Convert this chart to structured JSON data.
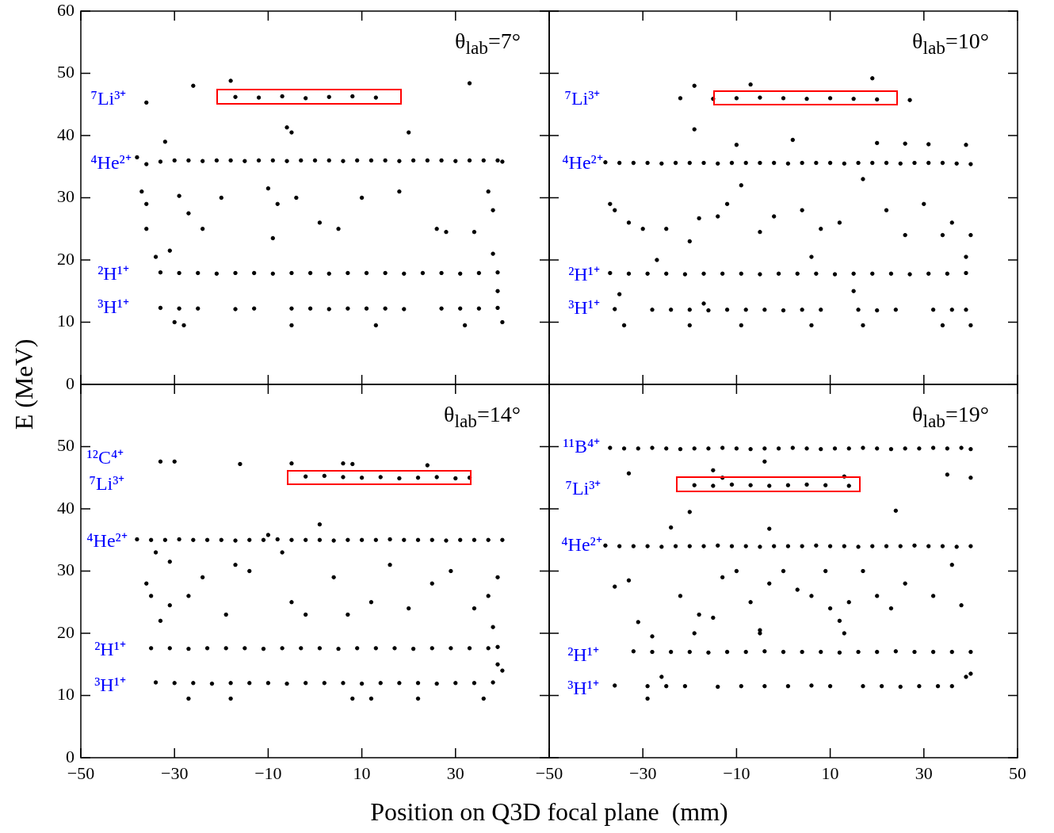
{
  "chart_data": [
    {
      "type": "scatter",
      "ylabel": "E (MeV)",
      "xlim": [
        -50,
        50
      ],
      "ylim": [
        0,
        60
      ],
      "xticks": [
        -50,
        -30,
        -10,
        10,
        30,
        50
      ],
      "yticks": [
        0,
        10,
        20,
        30,
        40,
        50,
        60
      ],
      "tick_labels": "y",
      "marker": "circle",
      "annotations": [
        "θ$_{lab}$=7°",
        "⁷Li³⁺",
        "⁴He²⁺",
        "²H¹⁺",
        "³H¹⁺"
      ],
      "series": [
        {
          "color": "#000000",
          "x": [
            -17,
            -12,
            -7,
            -2,
            3,
            8,
            13,
            -38,
            -36,
            -33,
            -30,
            -27,
            -24,
            -21,
            -18,
            -15,
            -12,
            -9,
            -6,
            -3,
            0,
            3,
            6,
            9,
            12,
            15,
            18,
            21,
            24,
            27,
            30,
            33,
            36,
            39,
            40,
            -33,
            -29,
            -25,
            -21,
            -17,
            -13,
            -9,
            -5,
            -1,
            3,
            7,
            11,
            15,
            19,
            23,
            27,
            31,
            35,
            39,
            -33,
            -29,
            -25,
            -17,
            -13,
            -5,
            -1,
            3,
            7,
            11,
            15,
            19,
            27,
            31,
            35,
            39,
            -36,
            -26,
            -18,
            -6,
            -5,
            20,
            33,
            -32,
            -37,
            -36,
            -36,
            -29,
            -27,
            -24,
            -20,
            -10,
            -8,
            -4,
            1,
            5,
            10,
            18,
            26,
            28,
            37,
            38,
            -30,
            -28,
            -5,
            13,
            32,
            40,
            39,
            38,
            34,
            -34,
            -31,
            -9
          ],
          "values": [
            46.2,
            46.1,
            46.3,
            46.0,
            46.2,
            46.3,
            46.1,
            36.5,
            35.4,
            35.8,
            36.0,
            36.0,
            35.9,
            36.0,
            36.0,
            35.9,
            36.0,
            36.0,
            35.9,
            36.0,
            36.0,
            36.0,
            35.9,
            36.0,
            36.0,
            36.0,
            35.9,
            36.0,
            36.0,
            36.0,
            35.9,
            36.0,
            36.0,
            36.0,
            35.8,
            18.0,
            17.9,
            17.9,
            17.8,
            17.9,
            17.9,
            17.8,
            17.9,
            17.9,
            17.8,
            17.9,
            17.9,
            17.9,
            17.8,
            17.9,
            17.9,
            17.8,
            17.9,
            18.0,
            12.3,
            12.2,
            12.2,
            12.1,
            12.2,
            12.2,
            12.2,
            12.1,
            12.2,
            12.2,
            12.2,
            12.1,
            12.2,
            12.2,
            12.2,
            12.3,
            45.3,
            48,
            48.8,
            41.3,
            40.5,
            40.5,
            48.4,
            39,
            31,
            29,
            25,
            30.3,
            27.5,
            25,
            30,
            31.5,
            29,
            30,
            26,
            25,
            30,
            31,
            25,
            24.5,
            31,
            28,
            10,
            9.5,
            9.5,
            9.5,
            9.5,
            10,
            15,
            21,
            24.5,
            20.5,
            21.5,
            23.5
          ]
        }
      ]
    },
    {
      "type": "scatter",
      "xlim": [
        -50,
        50
      ],
      "ylim": [
        0,
        60
      ],
      "xticks": [
        -50,
        -30,
        -10,
        10,
        30,
        50
      ],
      "yticks": [
        0,
        10,
        20,
        30,
        40,
        50,
        60
      ],
      "tick_labels": false,
      "marker": "circle",
      "annotations": [
        "θ$_{lab}$=10°",
        "⁷Li³⁺",
        "⁴He²⁺",
        "²H¹⁺",
        "³H¹⁺"
      ],
      "series": [
        {
          "color": "#000000",
          "x": [
            -15,
            -10,
            -5,
            0,
            5,
            10,
            15,
            20,
            -38,
            -35,
            -32,
            -29,
            -26,
            -23,
            -20,
            -17,
            -14,
            -11,
            -8,
            -5,
            -2,
            1,
            4,
            7,
            10,
            13,
            16,
            19,
            22,
            25,
            28,
            31,
            34,
            37,
            40,
            -37,
            -33,
            -29,
            -25,
            -21,
            -17,
            -13,
            -9,
            -5,
            -1,
            3,
            7,
            11,
            15,
            19,
            23,
            27,
            31,
            35,
            39,
            -36,
            -28,
            -24,
            -20,
            -16,
            -12,
            -8,
            -4,
            0,
            4,
            8,
            16,
            20,
            24,
            32,
            36,
            39,
            -22,
            -19,
            -7,
            19,
            27,
            -19,
            -10,
            2,
            20,
            26,
            31,
            39,
            -37,
            -36,
            -33,
            -30,
            -25,
            -20,
            -18,
            -14,
            -12,
            -9,
            -5,
            -2,
            4,
            8,
            12,
            17,
            22,
            26,
            30,
            34,
            36,
            39,
            40,
            -35,
            -27,
            15,
            -34,
            -20,
            -9,
            6,
            17,
            34,
            40,
            6,
            -17
          ],
          "values": [
            45.9,
            46.0,
            46.1,
            46.0,
            45.9,
            46.0,
            45.9,
            45.8,
            35.7,
            35.6,
            35.6,
            35.6,
            35.5,
            35.6,
            35.6,
            35.6,
            35.5,
            35.6,
            35.6,
            35.6,
            35.6,
            35.5,
            35.6,
            35.6,
            35.6,
            35.5,
            35.6,
            35.6,
            35.6,
            35.5,
            35.6,
            35.6,
            35.6,
            35.5,
            35.4,
            17.9,
            17.8,
            17.8,
            17.8,
            17.7,
            17.8,
            17.8,
            17.8,
            17.7,
            17.8,
            17.8,
            17.8,
            17.7,
            17.8,
            17.8,
            17.8,
            17.7,
            17.8,
            17.8,
            17.9,
            12.1,
            12.0,
            12.0,
            12.0,
            11.9,
            12.0,
            12.0,
            12.0,
            11.9,
            12.0,
            12.0,
            12.0,
            11.9,
            12.0,
            12.0,
            12.0,
            12.0,
            46,
            48,
            48.2,
            49.2,
            45.7,
            41,
            38.5,
            39.3,
            38.8,
            38.7,
            38.6,
            38.5,
            29,
            28,
            26,
            25,
            25,
            23,
            26.7,
            27,
            29,
            32,
            24.5,
            27,
            28,
            25,
            26,
            33,
            28,
            24,
            29,
            24,
            26,
            20.5,
            24,
            14.5,
            20,
            15,
            9.5,
            9.5,
            9.5,
            9.5,
            9.5,
            9.5,
            9.5,
            20.5,
            13
          ]
        }
      ]
    },
    {
      "type": "scatter",
      "xlabel": "Position on Q3D focal plane  (mm)",
      "xlim": [
        -50,
        50
      ],
      "ylim": [
        0,
        60
      ],
      "xticks": [
        -50,
        -30,
        -10,
        10,
        30,
        {
          "value": 50,
          "label": null
        }
      ],
      "yticks": [
        0,
        10,
        20,
        30,
        40,
        50,
        {
          "value": 60,
          "label": null
        }
      ],
      "marker": "circle",
      "annotations": [
        "θ$_{lab}$=14°",
        "¹²C⁴⁺",
        "⁷Li³⁺",
        "⁴He²⁺",
        "²H¹⁺",
        "³H¹⁺"
      ],
      "series": [
        {
          "color": "#000000",
          "x": [
            -2,
            2,
            6,
            10,
            14,
            18,
            22,
            26,
            30,
            33,
            -38,
            -35,
            -32,
            -29,
            -26,
            -23,
            -20,
            -17,
            -14,
            -11,
            -8,
            -5,
            -2,
            1,
            4,
            7,
            10,
            13,
            16,
            19,
            22,
            25,
            28,
            31,
            34,
            37,
            40,
            -35,
            -31,
            -27,
            -23,
            -19,
            -15,
            -11,
            -7,
            -3,
            1,
            5,
            9,
            13,
            17,
            21,
            25,
            29,
            33,
            37,
            39,
            -34,
            -30,
            -26,
            -22,
            -18,
            -14,
            -10,
            -6,
            -2,
            2,
            6,
            10,
            14,
            18,
            22,
            26,
            30,
            34,
            38,
            -33,
            -30,
            -16,
            -5,
            6,
            8,
            24,
            1,
            -36,
            -35,
            -33,
            -31,
            -27,
            -24,
            -19,
            -17,
            -14,
            -7,
            -5,
            -2,
            4,
            7,
            12,
            16,
            20,
            25,
            29,
            34,
            37,
            39,
            38,
            39,
            40,
            -27,
            -18,
            8,
            12,
            22,
            36,
            -31,
            -34,
            -10
          ],
          "values": [
            45.2,
            45.3,
            45.1,
            45.0,
            45.1,
            44.9,
            45.0,
            45.1,
            44.9,
            45.0,
            35.1,
            35.0,
            35.0,
            35.1,
            35.0,
            35.0,
            35.0,
            34.9,
            35.0,
            35.0,
            35.1,
            35.0,
            35.0,
            35.0,
            34.9,
            35.0,
            35.0,
            35.0,
            35.1,
            35.0,
            35.0,
            35.0,
            34.9,
            35.0,
            35.0,
            35.0,
            35.0,
            17.6,
            17.6,
            17.5,
            17.6,
            17.6,
            17.6,
            17.5,
            17.6,
            17.6,
            17.6,
            17.5,
            17.6,
            17.6,
            17.6,
            17.5,
            17.6,
            17.6,
            17.6,
            17.6,
            17.8,
            12.1,
            12.0,
            12.0,
            11.9,
            12.0,
            12.0,
            12.0,
            11.9,
            12.0,
            12.0,
            12.0,
            11.9,
            12.0,
            12.0,
            12.0,
            11.9,
            12.0,
            12.0,
            12.1,
            47.6,
            47.6,
            47.2,
            47.3,
            47.3,
            47.2,
            47,
            37.5,
            28,
            26,
            22,
            24.5,
            26,
            29,
            23,
            31,
            30,
            33,
            25,
            23,
            29,
            23,
            25,
            31,
            24,
            28,
            30,
            24,
            26,
            29,
            21,
            15,
            14,
            9.5,
            9.5,
            9.5,
            9.5,
            9.5,
            9.5,
            31.5,
            33,
            35.8
          ]
        }
      ]
    },
    {
      "type": "scatter",
      "xlim": [
        -50,
        50
      ],
      "ylim": [
        0,
        60
      ],
      "xticks": [
        -50,
        -30,
        -10,
        10,
        30,
        50
      ],
      "yticks": [
        0,
        10,
        20,
        30,
        40,
        50,
        60
      ],
      "tick_labels": "x",
      "marker": "circle",
      "annotations": [
        "θ$_{lab}$=19°",
        "¹¹B⁴⁺",
        "⁷Li³⁺",
        "⁴He²⁺",
        "²H¹⁺",
        "³H¹⁺"
      ],
      "series": [
        {
          "color": "#000000",
          "x": [
            -37,
            -34,
            -31,
            -28,
            -25,
            -22,
            -19,
            -16,
            -13,
            -10,
            -7,
            -4,
            -1,
            2,
            5,
            8,
            11,
            14,
            17,
            20,
            23,
            26,
            29,
            32,
            35,
            38,
            40,
            -19,
            -15,
            -11,
            -7,
            -3,
            1,
            5,
            9,
            14,
            -38,
            -35,
            -32,
            -29,
            -26,
            -23,
            -20,
            -17,
            -14,
            -11,
            -8,
            -5,
            -2,
            1,
            4,
            7,
            10,
            13,
            16,
            19,
            22,
            25,
            28,
            31,
            34,
            37,
            40,
            -32,
            -28,
            -24,
            -20,
            -16,
            -12,
            -8,
            -4,
            0,
            4,
            8,
            12,
            16,
            20,
            24,
            28,
            32,
            36,
            40,
            -36,
            -29,
            -25,
            -21,
            -14,
            -9,
            -4,
            1,
            6,
            10,
            17,
            21,
            25,
            29,
            33,
            36,
            -33,
            -15,
            -13,
            -4,
            13,
            24,
            35,
            40,
            -20,
            -3,
            -24,
            -36,
            -33,
            -31,
            -22,
            -18,
            -15,
            -13,
            -10,
            -7,
            -5,
            -3,
            0,
            3,
            6,
            9,
            10,
            12,
            14,
            17,
            20,
            23,
            26,
            32,
            36,
            38,
            39,
            40,
            -29,
            -26,
            -5,
            13,
            -19,
            -28
          ],
          "values": [
            49.8,
            49.7,
            49.7,
            49.8,
            49.7,
            49.6,
            49.7,
            49.7,
            49.8,
            49.7,
            49.6,
            49.7,
            49.7,
            49.8,
            49.7,
            49.6,
            49.7,
            49.7,
            49.8,
            49.7,
            49.6,
            49.7,
            49.7,
            49.8,
            49.7,
            49.8,
            49.6,
            43.8,
            43.7,
            43.9,
            43.8,
            43.7,
            43.8,
            43.9,
            43.8,
            43.7,
            34.1,
            34.0,
            34.0,
            34.0,
            33.9,
            34.0,
            34.0,
            34.0,
            34.1,
            34.0,
            34.0,
            33.9,
            34.0,
            34.0,
            34.0,
            34.1,
            34.0,
            34.0,
            33.9,
            34.0,
            34.0,
            34.0,
            34.1,
            34.0,
            34.0,
            33.9,
            34.0,
            17.1,
            17.0,
            17.0,
            17.0,
            16.9,
            17.0,
            17.0,
            17.1,
            17.0,
            17.0,
            17.0,
            16.9,
            17.0,
            17.0,
            17.1,
            17.0,
            17.0,
            17.0,
            17.0,
            11.6,
            11.5,
            11.5,
            11.5,
            11.4,
            11.5,
            11.5,
            11.5,
            11.6,
            11.5,
            11.5,
            11.5,
            11.4,
            11.5,
            11.5,
            11.5,
            45.7,
            46.2,
            45,
            47.6,
            45.2,
            39.7,
            45.5,
            45,
            39.5,
            36.8,
            37,
            27.5,
            28.5,
            21.8,
            26,
            23,
            22.5,
            29,
            30,
            25,
            20.5,
            28,
            30,
            27,
            26,
            30,
            24,
            22,
            25,
            30,
            26,
            24,
            28,
            26,
            31,
            24.5,
            13,
            13.5,
            9.5,
            13,
            20,
            20,
            20,
            19.5
          ]
        }
      ]
    }
  ]
}
